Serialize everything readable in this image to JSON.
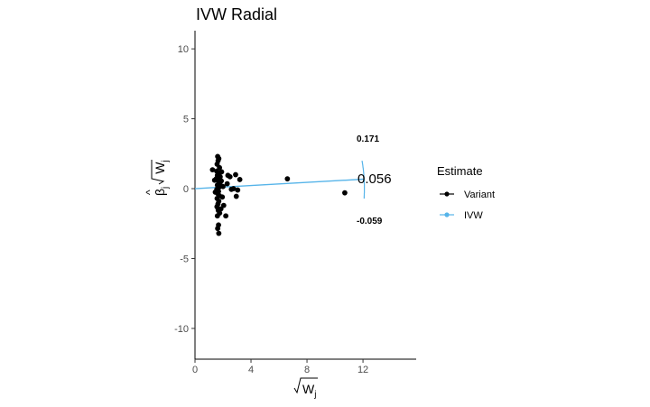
{
  "chart_data": {
    "type": "scatter",
    "title": "IVW Radial",
    "xlabel_base": "W",
    "xlabel_sub": "j",
    "ylabel_beta": "β",
    "ylabel_beta_sub": "j",
    "ylabel_w": "W",
    "ylabel_w_sub": "j",
    "xlim": [
      0,
      15.8
    ],
    "ylim": [
      -12.2,
      11.3
    ],
    "x_ticks": [
      0,
      4,
      8,
      12
    ],
    "y_ticks": [
      10,
      5,
      0,
      -5,
      -10
    ],
    "grid": false,
    "legend_position": "right",
    "legend_title": "Estimate",
    "series": [
      {
        "name": "Variant",
        "color": "#000000",
        "points": [
          [
            1.62,
            2.3
          ],
          [
            1.7,
            2.15
          ],
          [
            1.65,
            2.0
          ],
          [
            1.58,
            1.75
          ],
          [
            1.75,
            1.5
          ],
          [
            1.55,
            1.25
          ],
          [
            1.7,
            1.1
          ],
          [
            1.6,
            0.95
          ],
          [
            1.8,
            0.85
          ],
          [
            1.52,
            0.7
          ],
          [
            1.66,
            0.55
          ],
          [
            1.78,
            0.4
          ],
          [
            1.6,
            0.25
          ],
          [
            1.72,
            0.1
          ],
          [
            1.56,
            -0.05
          ],
          [
            1.68,
            -0.2
          ],
          [
            1.62,
            -0.35
          ],
          [
            1.74,
            -0.5
          ],
          [
            1.58,
            -0.7
          ],
          [
            1.7,
            -0.9
          ],
          [
            1.64,
            -1.1
          ],
          [
            1.57,
            -1.3
          ],
          [
            1.66,
            -1.55
          ],
          [
            1.76,
            -1.75
          ],
          [
            1.6,
            -1.95
          ],
          [
            1.68,
            -2.6
          ],
          [
            1.62,
            -2.85
          ],
          [
            1.7,
            -3.2
          ],
          [
            1.25,
            1.35
          ],
          [
            1.4,
            0.6
          ],
          [
            1.45,
            -0.25
          ],
          [
            1.9,
            1.2
          ],
          [
            2.0,
            0.15
          ],
          [
            1.95,
            -0.6
          ],
          [
            2.05,
            -1.2
          ],
          [
            2.2,
            -1.95
          ],
          [
            2.35,
            0.95
          ],
          [
            2.3,
            0.35
          ],
          [
            2.5,
            0.85
          ],
          [
            2.6,
            -0.05
          ],
          [
            2.75,
            0.0
          ],
          [
            2.9,
            1.0
          ],
          [
            3.05,
            -0.1
          ],
          [
            3.2,
            0.65
          ],
          [
            2.95,
            -0.55
          ],
          [
            1.85,
            -1.45
          ],
          [
            1.88,
            0.55
          ],
          [
            6.6,
            0.7
          ],
          [
            10.7,
            -0.3
          ]
        ]
      },
      {
        "name": "IVW",
        "color": "#56b4e9",
        "line": [
          [
            0,
            0
          ],
          [
            12.1,
            0.68
          ]
        ]
      }
    ],
    "annotations": {
      "upper": "0.171",
      "mid": "0.056",
      "lower": "-0.059"
    }
  }
}
